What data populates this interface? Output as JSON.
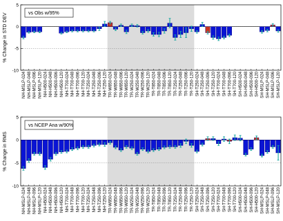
{
  "colors": {
    "bar": "#0a14d4",
    "bar_dark": "#00007a",
    "highlight": "#c8321e",
    "error": "#1aa6a0",
    "shade": "#dcdcdc"
  },
  "chart_data": [
    {
      "type": "bar",
      "legend_label": "vs Obs w/95%",
      "ylabel": "% Change in STD DEV",
      "ylim": [
        -10,
        5
      ],
      "yticks": [
        5,
        0,
        -5,
        -10
      ],
      "shaded_range": [
        "TR-W850-024",
        "TR-T250-120"
      ],
      "categories": [
        "NH-MSLP-024",
        "NH-MSLP-048",
        "NH-MSLP-096",
        "NH-MSLP-120",
        "NH-H500-024",
        "NH-H500-048",
        "NH-H500-096",
        "NH-H500-120",
        "NH-T700-024",
        "NH-T700-048",
        "NH-T700-096",
        "NH-T700-120",
        "NH-T250-024",
        "NH-T250-048",
        "NH-T250-096",
        "NH-T250-120",
        "TR-W850-024",
        "TR-W850-048",
        "TR-W850-096",
        "TR-W850-120",
        "TR-W250-024",
        "TR-W250-048",
        "TR-W250-096",
        "TR-W250-120",
        "TR-T850-024",
        "TR-T850-048",
        "TR-T850-096",
        "TR-T850-120",
        "TR-T250-024",
        "TR-T250-048",
        "TR-T250-096",
        "TR-T250-120",
        "SH-T250-024",
        "SH-T250-048",
        "SH-T250-096",
        "SH-T250-120",
        "SH-T700-024",
        "SH-T700-048",
        "SH-T700-096",
        "SH-T700-120",
        "SH-H500-024",
        "SH-H500-048",
        "SH-H500-096",
        "SH-H500-120",
        "SH-MSLP-024",
        "SH-MSLP-048",
        "SH-MSLP-096",
        "SH-MSLP-120"
      ],
      "values": [
        -2.5,
        -1.3,
        -1.2,
        -1.2,
        0,
        0,
        0,
        -1.5,
        -1.2,
        -1.0,
        -1.0,
        -1.0,
        -1.0,
        -1.0,
        -0.5,
        0.6,
        0.9,
        -0.6,
        0.3,
        -1.2,
        0.3,
        0.2,
        -1.4,
        -1.0,
        -1.8,
        -1.8,
        -1.0,
        0.8,
        -2.5,
        -1.8,
        -1.4,
        -0.5,
        -1.2,
        0.5,
        -1.4,
        -2.5,
        -2.8,
        -2.5,
        -2.0,
        0,
        0,
        0,
        0,
        0,
        -1.2,
        -0.9,
        0.4,
        -1.0
      ],
      "errors": [
        0.3,
        0.2,
        0.2,
        0.2,
        0,
        0,
        0,
        0.2,
        0.2,
        0.2,
        0.2,
        0.2,
        0.2,
        0.2,
        0.4,
        0.6,
        0.3,
        0.3,
        0.3,
        0.4,
        0.3,
        0.3,
        0.3,
        0.3,
        0.4,
        0.5,
        0.5,
        1.1,
        0.6,
        0.7,
        1.1,
        0.6,
        0.3,
        0.5,
        0.3,
        0.4,
        0.4,
        0.3,
        0.3,
        0,
        0,
        0,
        0,
        0,
        0.3,
        0.3,
        0.3,
        0.3
      ],
      "highlighted": [
        16,
        34,
        46
      ]
    },
    {
      "type": "bar",
      "legend_label": "vs NCEP Ana w/90%",
      "ylabel": "% Change in RMS",
      "ylim": [
        -10,
        5
      ],
      "yticks": [
        5,
        0,
        -5,
        -10
      ],
      "shaded_range": [
        "TR-W850-024",
        "TR-T250-120"
      ],
      "categories": [
        "NH-MSLP-024",
        "NH-MSLP-048",
        "NH-MSLP-096",
        "NH-MSLP-120",
        "NH-H500-024",
        "NH-H500-048",
        "NH-H500-096",
        "NH-H500-120",
        "NH-T700-024",
        "NH-T700-048",
        "NH-T700-096",
        "NH-T700-120",
        "NH-T250-024",
        "NH-T250-048",
        "NH-T250-096",
        "NH-T250-120",
        "TR-W850-024",
        "TR-W850-048",
        "TR-W850-096",
        "TR-W850-120",
        "TR-W250-024",
        "TR-W250-048",
        "TR-W250-096",
        "TR-W250-120",
        "TR-T850-024",
        "TR-T850-048",
        "TR-T850-096",
        "TR-T850-120",
        "TR-T250-024",
        "TR-T250-048",
        "TR-T250-096",
        "TR-T250-120",
        "SH-T250-024",
        "SH-T250-048",
        "SH-T250-096",
        "SH-T250-120",
        "SH-T700-024",
        "SH-T700-048",
        "SH-T700-096",
        "SH-T700-120",
        "SH-H500-024",
        "SH-H500-048",
        "SH-H500-096",
        "SH-H500-120",
        "SH-MSLP-024",
        "SH-MSLP-048",
        "SH-MSLP-096",
        "SH-MSLP-120"
      ],
      "values": [
        -6.2,
        -4.5,
        -3.0,
        -3.0,
        -6.0,
        -4.2,
        -3.0,
        -2.6,
        -2.5,
        -2.0,
        -1.8,
        -1.5,
        -1.5,
        -1.2,
        -1.0,
        -1.0,
        -0.6,
        -1.6,
        -2.2,
        -1.5,
        -1.8,
        -3.0,
        -2.0,
        -2.5,
        -2.2,
        -2.0,
        -1.6,
        -1.5,
        -1.5,
        -1.2,
        -0.3,
        -1.2,
        -2.5,
        -1.0,
        0.3,
        0.3,
        -0.8,
        0.2,
        -0.3,
        0.5,
        0.4,
        -3.2,
        -2.0,
        0.5,
        -3.4,
        -2.6,
        -1.5,
        -2.8
      ],
      "errors": [
        0.4,
        0.4,
        0.3,
        0.3,
        0.4,
        0.4,
        0.3,
        0.3,
        0.3,
        0.3,
        0.3,
        0.3,
        0.3,
        0.3,
        0.3,
        0.4,
        0.3,
        0.3,
        0.3,
        0.3,
        0.3,
        0.3,
        0.3,
        0.3,
        0.3,
        0.3,
        0.3,
        0.3,
        0.3,
        0.4,
        0.5,
        0.4,
        0.3,
        0.3,
        0.4,
        0.4,
        0.4,
        0.5,
        0.5,
        0.6,
        0.6,
        0.3,
        0.3,
        0.4,
        0.3,
        0.3,
        0.3,
        1.6
      ],
      "highlighted": [
        34,
        38,
        43
      ]
    }
  ]
}
